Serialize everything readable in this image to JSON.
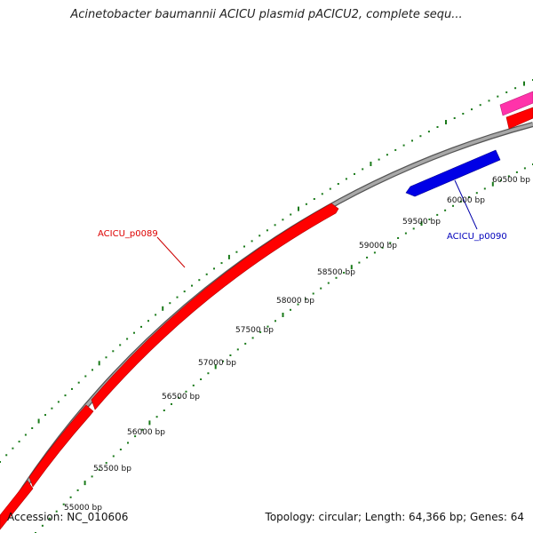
{
  "title": "Acinetobacter baumannii ACICU plasmid pACICU2, complete sequ...",
  "footer": {
    "accession": "Accession: NC_010606",
    "summary": "Topology: circular; Length: 64,366 bp; Genes: 64"
  },
  "ticks": [
    "55000 bp",
    "55500 bp",
    "56000 bp",
    "56500 bp",
    "57000 bp",
    "57500 bp",
    "58000 bp",
    "58500 bp",
    "59000 bp",
    "59500 bp",
    "60000 bp",
    "60500 bp"
  ],
  "genes": [
    {
      "label": "ACICU_p0089",
      "color": "#dd0000"
    },
    {
      "label": "ACICU_p0090",
      "color": "#0000bb"
    }
  ],
  "colors": {
    "backbone": "#8a8a8a",
    "gc_dots": "#1a7a1a",
    "gene_red": "#ff0000",
    "gene_blue": "#0000e6",
    "gene_pink": "#ff33aa"
  }
}
